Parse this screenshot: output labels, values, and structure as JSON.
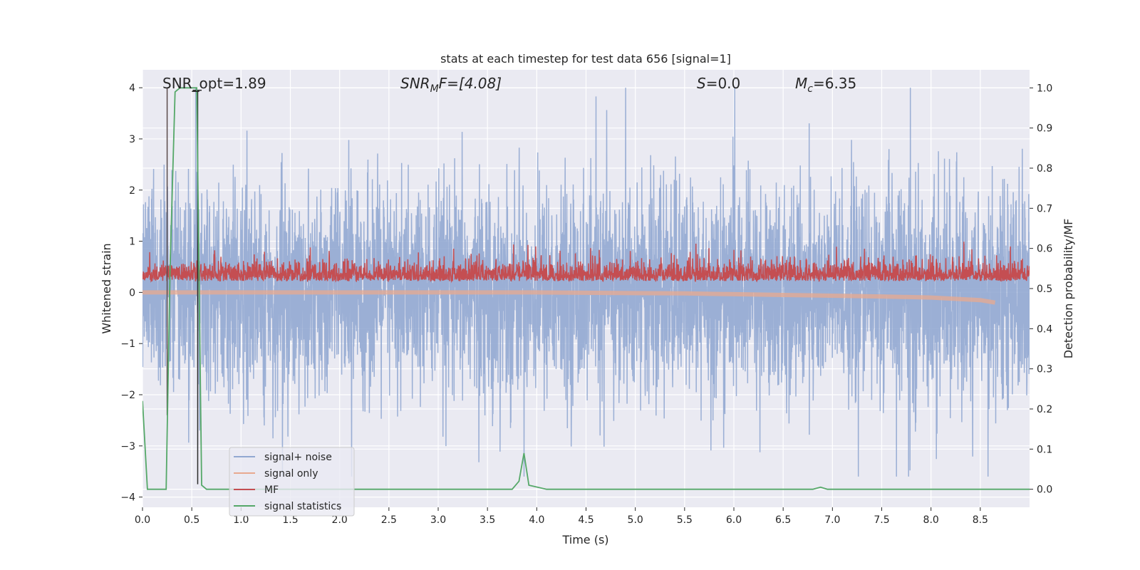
{
  "chart_data": {
    "type": "line",
    "title": "stats at each timestep for test data 656 [signal=1]",
    "xlabel": "Time (s)",
    "ylabel_left": "Whitened strain",
    "ylabel_right": "Detection probability/MF",
    "xlim": [
      0.0,
      9.0
    ],
    "ylim_left": [
      -4.2,
      4.35
    ],
    "ylim_right": [
      -0.045,
      1.045
    ],
    "x_ticks": [
      "0.0",
      "0.5",
      "1.0",
      "1.5",
      "2.0",
      "2.5",
      "3.0",
      "3.5",
      "4.0",
      "4.5",
      "5.0",
      "5.5",
      "6.0",
      "6.5",
      "7.0",
      "7.5",
      "8.0",
      "8.5"
    ],
    "y_ticks_left": [
      "4",
      "3",
      "2",
      "1",
      "0",
      "−1",
      "−2",
      "−3",
      "−4"
    ],
    "y_ticks_right": [
      "1.0",
      "0.9",
      "0.8",
      "0.7",
      "0.6",
      "0.5",
      "0.4",
      "0.3",
      "0.2",
      "0.1",
      "0.0"
    ],
    "grid": true,
    "legend_position": "lower-left",
    "annotations": {
      "snr_opt": "SNR_opt=1.89",
      "snr_mf_base": "SNR",
      "snr_mf_sub": "M",
      "snr_mf_rest": "F=[4.08]",
      "s_var": "S",
      "s_rest": "=0.0",
      "mc_base": "M",
      "mc_sub": "c",
      "mc_rest": "=6.35"
    },
    "series": [
      {
        "name": "signal+ noise",
        "color": "#92a8d1",
        "axis": "left",
        "approx_range": [
          -3.6,
          4.0
        ]
      },
      {
        "name": "signal only",
        "color": "#e8a98f",
        "axis": "left",
        "x": [
          0.0,
          4.0,
          5.5,
          6.5,
          7.5,
          8.0,
          8.5,
          8.65
        ],
        "y": [
          0.0,
          0.0,
          -0.02,
          -0.05,
          -0.08,
          -0.1,
          -0.15,
          -0.2
        ]
      },
      {
        "name": "MF",
        "color": "#c44e52",
        "axis": "left",
        "approx_range": [
          0.0,
          1.0
        ]
      },
      {
        "name": "signal statistics",
        "color": "#55a868",
        "axis": "right",
        "x": [
          0.0,
          0.05,
          0.24,
          0.28,
          0.33,
          0.38,
          0.55,
          0.6,
          0.65,
          0.7,
          3.75,
          3.82,
          3.87,
          3.92,
          4.1,
          6.8,
          6.88,
          6.95,
          9.0
        ],
        "y": [
          0.22,
          0.0,
          0.0,
          0.55,
          0.99,
          1.0,
          1.0,
          0.01,
          0.0,
          0.0,
          0.0,
          0.02,
          0.09,
          0.01,
          0.0,
          0.0,
          0.005,
          0.0,
          0.0
        ]
      }
    ],
    "markers": [
      {
        "x": 0.25,
        "y_from": -2.4,
        "y_to": 4.0,
        "color": "#5a4b4b"
      },
      {
        "x": 0.56,
        "y_from": -3.75,
        "y_to": 3.95,
        "color": "#2b2b2b"
      }
    ],
    "colors": {
      "plot_bg": "#eaeaf2",
      "grid": "#ffffff",
      "text": "#262626"
    }
  }
}
